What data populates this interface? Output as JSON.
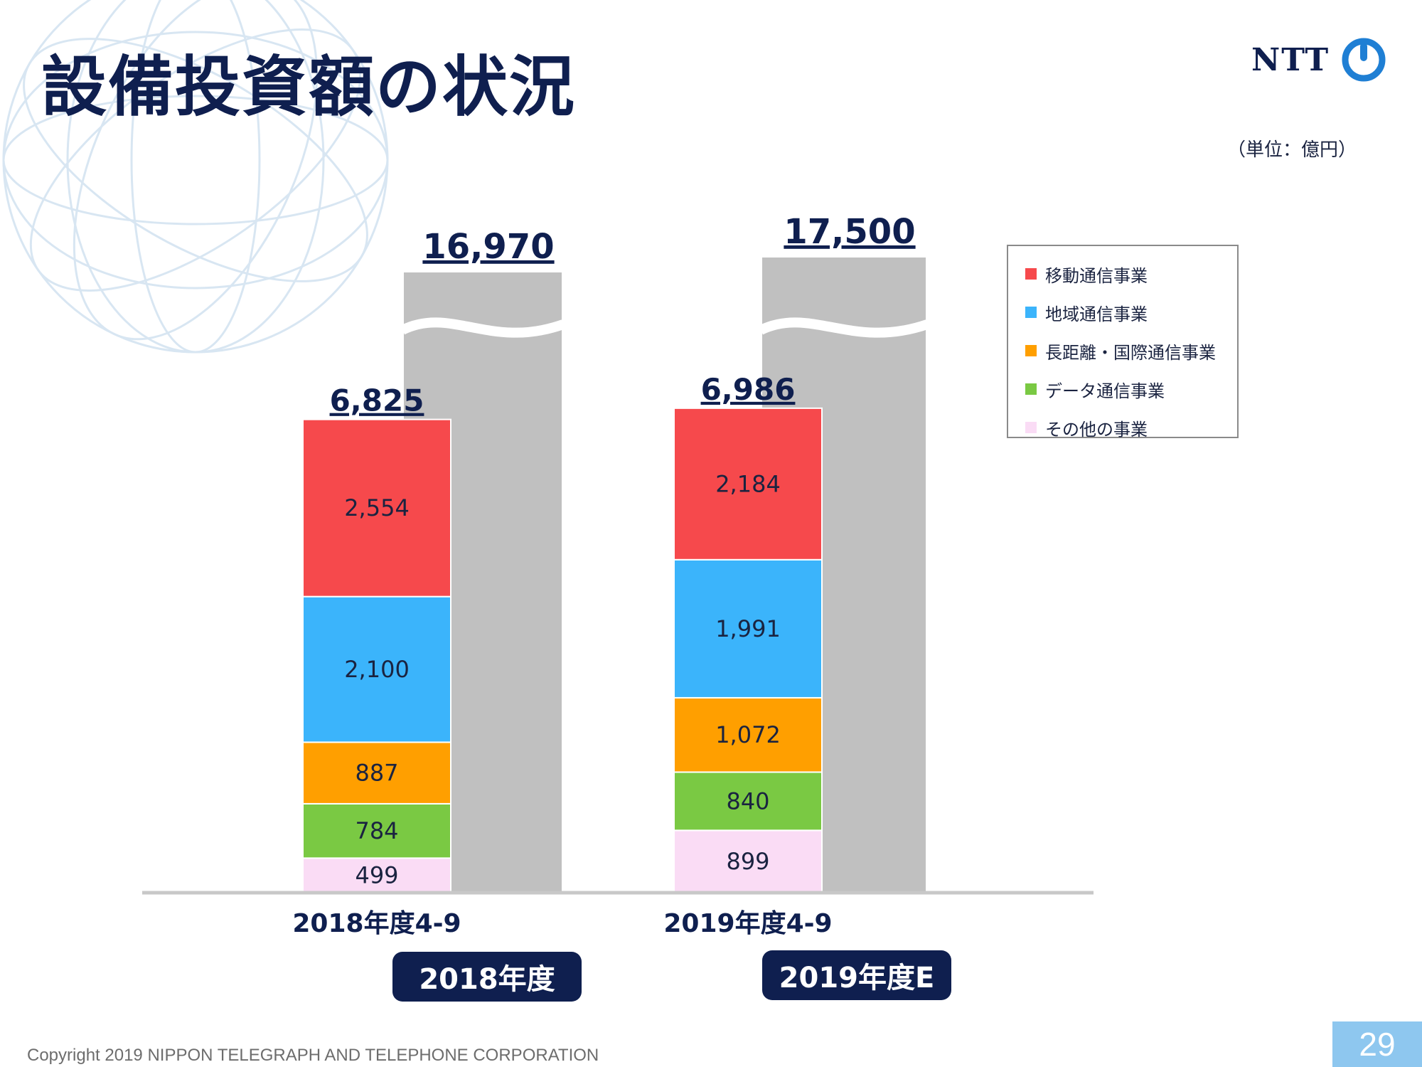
{
  "title": "設備投資額の状況",
  "logo": {
    "text": "NTT"
  },
  "unit_label": "（単位：億円）",
  "chart_data": {
    "type": "bar",
    "stacked": true,
    "categories": [
      "2018年度4-9",
      "2019年度4-9"
    ],
    "series": [
      {
        "name": "その他の事業",
        "color": "#fadcf5",
        "values": [
          499,
          899
        ]
      },
      {
        "name": "データ通信事業",
        "color": "#7ac943",
        "values": [
          784,
          840
        ]
      },
      {
        "name": "長距離・国際通信事業",
        "color": "#ff9f00",
        "values": [
          887,
          1072
        ]
      },
      {
        "name": "地域通信事業",
        "color": "#3bb4fb",
        "values": [
          2100,
          1991
        ]
      },
      {
        "name": "移動通信事業",
        "color": "#f6494c",
        "values": [
          2554,
          2184
        ]
      }
    ],
    "totals": [
      "6,825",
      "6,986"
    ],
    "full_year": {
      "categories": [
        "2018年度",
        "2019年度E"
      ],
      "values": [
        16970,
        17500
      ],
      "labels": [
        "16,970",
        "17,500"
      ],
      "color": "#c0c0c0",
      "axis_break": true
    },
    "legend": {
      "position": "right",
      "entries": [
        "移動通信事業",
        "地域通信事業",
        "長距離・国際通信事業",
        "データ通信事業",
        "その他の事業"
      ]
    },
    "ylim": [
      0,
      7000
    ],
    "grid": false
  },
  "footer": "Copyright 2019 NIPPON TELEGRAPH AND TELEPHONE CORPORATION",
  "page_number": "29"
}
